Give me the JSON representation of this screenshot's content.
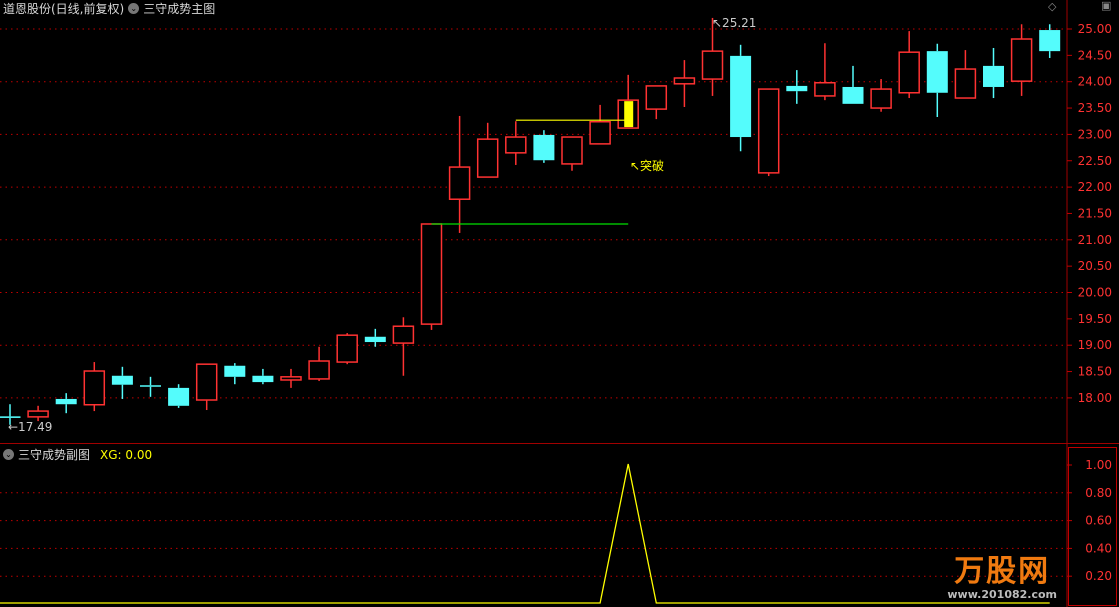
{
  "header": {
    "stock_title": "道恩股份(日线,前复权)",
    "main_indicator": "三守成势主图",
    "sub_indicator": "三守成势副图",
    "sub_value_label": "XG: 0.00"
  },
  "annotations": {
    "low_label": "17.49",
    "high_label": "25.21",
    "breakout_label": "突破"
  },
  "logo": {
    "name": "万股网",
    "url": "www.201082.com"
  },
  "colors": {
    "up": "#ff3232",
    "down": "#54fcfc",
    "grid": "#c00000",
    "axis_text": "#ff3232",
    "xg_line": "#ffff00",
    "support_line": "#00e000",
    "resistance_line": "#ffff00"
  },
  "chart_data": [
    {
      "type": "candlestick",
      "title": "三守成势主图",
      "ylim": [
        17.2,
        25.3
      ],
      "yticks": [
        "25.00",
        "24.50",
        "24.00",
        "23.50",
        "23.00",
        "22.50",
        "22.00",
        "21.50",
        "21.00",
        "20.50",
        "20.00",
        "19.50",
        "19.00",
        "18.50",
        "18.00"
      ],
      "grid": "dotted at whole prices",
      "candles": [
        {
          "o": 17.65,
          "h": 17.88,
          "l": 17.49,
          "c": 17.62
        },
        {
          "o": 17.64,
          "h": 17.85,
          "l": 17.56,
          "c": 17.75
        },
        {
          "o": 17.98,
          "h": 18.09,
          "l": 17.71,
          "c": 17.88
        },
        {
          "o": 17.87,
          "h": 18.68,
          "l": 17.75,
          "c": 18.51
        },
        {
          "o": 18.42,
          "h": 18.59,
          "l": 17.98,
          "c": 18.25
        },
        {
          "o": 18.24,
          "h": 18.4,
          "l": 18.02,
          "c": 18.23
        },
        {
          "o": 18.19,
          "h": 18.26,
          "l": 17.81,
          "c": 17.85
        },
        {
          "o": 17.96,
          "h": 18.64,
          "l": 17.77,
          "c": 18.64
        },
        {
          "o": 18.61,
          "h": 18.66,
          "l": 18.26,
          "c": 18.4
        },
        {
          "o": 18.42,
          "h": 18.55,
          "l": 18.26,
          "c": 18.3
        },
        {
          "o": 18.34,
          "h": 18.55,
          "l": 18.19,
          "c": 18.4
        },
        {
          "o": 18.36,
          "h": 18.97,
          "l": 18.32,
          "c": 18.7
        },
        {
          "o": 18.68,
          "h": 19.23,
          "l": 18.64,
          "c": 19.19
        },
        {
          "o": 19.16,
          "h": 19.31,
          "l": 18.97,
          "c": 19.06
        },
        {
          "o": 19.04,
          "h": 19.53,
          "l": 18.42,
          "c": 19.36
        },
        {
          "o": 19.4,
          "h": 21.3,
          "l": 19.29,
          "c": 21.3
        },
        {
          "o": 21.77,
          "h": 23.35,
          "l": 21.13,
          "c": 22.38
        },
        {
          "o": 22.19,
          "h": 23.22,
          "l": 22.19,
          "c": 22.91
        },
        {
          "o": 22.65,
          "h": 23.25,
          "l": 22.42,
          "c": 22.95
        },
        {
          "o": 22.99,
          "h": 23.08,
          "l": 22.46,
          "c": 22.51
        },
        {
          "o": 22.44,
          "h": 22.95,
          "l": 22.31,
          "c": 22.95
        },
        {
          "o": 22.82,
          "h": 23.56,
          "l": 22.82,
          "c": 23.24
        },
        {
          "o": 23.12,
          "h": 24.13,
          "l": 23.12,
          "c": 23.65,
          "highlight": true
        },
        {
          "o": 23.48,
          "h": 23.92,
          "l": 23.29,
          "c": 23.92
        },
        {
          "o": 23.96,
          "h": 24.41,
          "l": 23.52,
          "c": 24.07
        },
        {
          "o": 24.05,
          "h": 25.21,
          "l": 23.73,
          "c": 24.58
        },
        {
          "o": 24.49,
          "h": 24.7,
          "l": 22.68,
          "c": 22.95
        },
        {
          "o": 22.27,
          "h": 23.86,
          "l": 22.21,
          "c": 23.86
        },
        {
          "o": 23.92,
          "h": 24.22,
          "l": 23.58,
          "c": 23.82
        },
        {
          "o": 23.73,
          "h": 24.73,
          "l": 23.65,
          "c": 23.98
        },
        {
          "o": 23.9,
          "h": 24.3,
          "l": 23.58,
          "c": 23.58
        },
        {
          "o": 23.5,
          "h": 24.05,
          "l": 23.43,
          "c": 23.86
        },
        {
          "o": 23.79,
          "h": 24.96,
          "l": 23.69,
          "c": 24.56
        },
        {
          "o": 24.58,
          "h": 24.72,
          "l": 23.33,
          "c": 23.79
        },
        {
          "o": 23.69,
          "h": 24.6,
          "l": 23.69,
          "c": 24.24
        },
        {
          "o": 24.3,
          "h": 24.64,
          "l": 23.69,
          "c": 23.9
        },
        {
          "o": 24.01,
          "h": 25.09,
          "l": 23.73,
          "c": 24.81
        },
        {
          "o": 24.98,
          "h": 25.09,
          "l": 24.45,
          "c": 24.58
        }
      ],
      "lines": [
        {
          "color": "#00e000",
          "price": 21.3,
          "from_index": 15,
          "to_index": 22
        },
        {
          "color": "#ffff00",
          "price": 23.27,
          "from_index": 18,
          "to_index": 22
        }
      ]
    },
    {
      "type": "line",
      "title": "三守成势副图",
      "series": [
        {
          "name": "XG",
          "values": [
            0,
            0,
            0,
            0,
            0,
            0,
            0,
            0,
            0,
            0,
            0,
            0,
            0,
            0,
            0,
            0,
            0,
            0,
            0,
            0,
            0,
            0,
            1,
            0,
            0,
            0,
            0,
            0,
            0,
            0,
            0,
            0,
            0,
            0,
            0,
            0,
            0,
            0
          ]
        }
      ],
      "ylim": [
        0,
        1.05
      ],
      "yticks": [
        "1.00",
        "0.80",
        "0.60",
        "0.40",
        "0.20"
      ]
    }
  ]
}
